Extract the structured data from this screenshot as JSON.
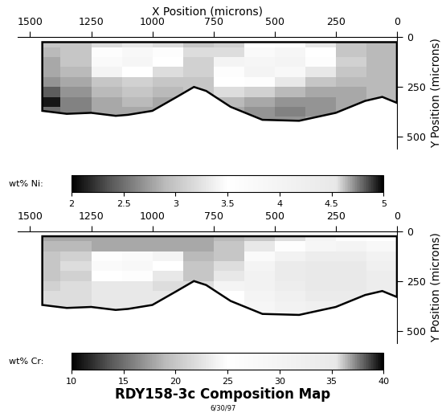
{
  "title": "RDY158-3c Composition Map",
  "subtitle": "6/30/97",
  "chart_data": [
    {
      "type": "heatmap",
      "x_label": "X Position (microns)",
      "y_label": "Y Position (microns)",
      "xlim": [
        1550,
        0
      ],
      "xticks": [
        1500,
        1250,
        1000,
        750,
        500,
        250,
        0
      ],
      "ylim": [
        560,
        0
      ],
      "yticks": [
        0,
        250,
        500
      ],
      "x_edges": [
        1500,
        1375,
        1250,
        1125,
        1000,
        875,
        750,
        625,
        500,
        375,
        250,
        125,
        0
      ],
      "y_edges": [
        0,
        50,
        100,
        150,
        200,
        250,
        300,
        350,
        400,
        450
      ],
      "cells": [
        [
          3.0,
          3.0,
          3.2,
          3.3,
          3.2,
          3.0,
          3.1,
          3.5,
          3.6,
          3.3,
          3.0,
          2.9
        ],
        [
          2.9,
          3.0,
          3.6,
          3.8,
          3.6,
          3.2,
          3.2,
          3.7,
          3.9,
          3.5,
          3.0,
          2.9
        ],
        [
          2.8,
          3.0,
          3.7,
          3.9,
          3.5,
          3.1,
          3.4,
          3.9,
          4.0,
          3.6,
          3.1,
          2.9
        ],
        [
          2.8,
          2.9,
          3.4,
          3.5,
          3.2,
          3.1,
          3.6,
          4.0,
          3.8,
          3.3,
          3.0,
          2.9
        ],
        [
          2.7,
          2.8,
          3.0,
          3.1,
          3.0,
          3.0,
          3.5,
          3.6,
          3.3,
          3.0,
          2.9,
          2.9
        ],
        [
          2.4,
          2.7,
          2.9,
          3.0,
          2.9,
          3.0,
          3.2,
          3.1,
          2.9,
          2.8,
          2.8,
          2.9
        ],
        [
          2.1,
          2.6,
          2.8,
          2.9,
          2.8,
          2.9,
          2.9,
          2.8,
          2.7,
          2.7,
          2.8,
          2.9
        ],
        [
          2.5,
          2.6,
          2.8,
          2.8,
          2.8,
          2.9,
          2.8,
          2.7,
          2.6,
          2.7,
          2.8,
          2.9
        ],
        [
          2.6,
          2.7,
          2.8,
          2.8,
          2.8,
          2.9,
          2.8,
          2.7,
          2.7,
          2.8,
          2.8,
          2.9
        ]
      ],
      "outline": {
        "x": [
          1450,
          0,
          0,
          60,
          130,
          250,
          400,
          550,
          680,
          780,
          830,
          900,
          1000,
          1100,
          1150,
          1250,
          1350,
          1450
        ],
        "y": [
          25,
          25,
          330,
          300,
          320,
          380,
          420,
          415,
          350,
          270,
          250,
          300,
          370,
          390,
          395,
          380,
          385,
          370
        ]
      },
      "colorbar": {
        "label": "wt% Ni:",
        "range": [
          2,
          5
        ],
        "ticks": [
          2,
          2.5,
          3,
          3.5,
          4,
          4.5,
          5
        ]
      }
    },
    {
      "type": "heatmap",
      "y_label": "Y Position (microns)",
      "xlim": [
        1550,
        0
      ],
      "xticks": [
        1500,
        1250,
        1000,
        750,
        500,
        250,
        0
      ],
      "ylim": [
        560,
        0
      ],
      "yticks": [
        0,
        250,
        500
      ],
      "x_edges": [
        1500,
        1375,
        1250,
        1125,
        1000,
        875,
        750,
        625,
        500,
        375,
        250,
        125,
        0
      ],
      "y_edges": [
        0,
        50,
        100,
        150,
        200,
        250,
        300,
        350,
        400,
        450
      ],
      "cells": [
        [
          18,
          18,
          18,
          18,
          18,
          18,
          19,
          20,
          22,
          24,
          26,
          25
        ],
        [
          19,
          19,
          18,
          18,
          18,
          18,
          20,
          23,
          26,
          29,
          30,
          28
        ],
        [
          20,
          21,
          26,
          27,
          24,
          19,
          20,
          27,
          31,
          33,
          33,
          31
        ],
        [
          20,
          22,
          27,
          28,
          25,
          20,
          22,
          30,
          34,
          35,
          35,
          32
        ],
        [
          20,
          21,
          25,
          26,
          23,
          20,
          23,
          31,
          34,
          35,
          35,
          33
        ],
        [
          21,
          22,
          23,
          23,
          22,
          22,
          24,
          31,
          33,
          35,
          35,
          33
        ],
        [
          22,
          22,
          23,
          23,
          23,
          23,
          25,
          30,
          32,
          34,
          34,
          33
        ],
        [
          22,
          22,
          23,
          23,
          23,
          23,
          25,
          29,
          31,
          32,
          33,
          32
        ],
        [
          22,
          22,
          23,
          23,
          23,
          23,
          25,
          28,
          30,
          31,
          31,
          31
        ]
      ],
      "outline": {
        "x": [
          1450,
          0,
          0,
          60,
          130,
          250,
          400,
          550,
          680,
          780,
          830,
          900,
          1000,
          1100,
          1150,
          1250,
          1350,
          1450
        ],
        "y": [
          25,
          25,
          330,
          300,
          320,
          380,
          420,
          415,
          350,
          270,
          250,
          300,
          370,
          390,
          395,
          380,
          385,
          370
        ]
      },
      "colorbar": {
        "label": "wt% Cr:",
        "range": [
          10,
          40
        ],
        "ticks": [
          10,
          15,
          20,
          25,
          30,
          35,
          40
        ]
      }
    }
  ]
}
